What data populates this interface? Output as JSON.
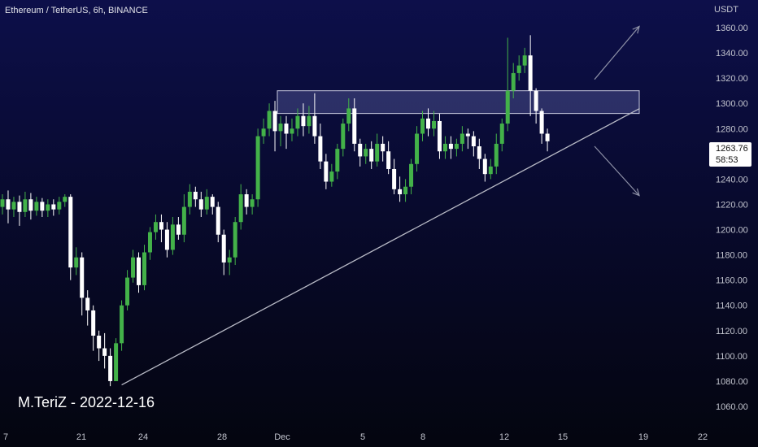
{
  "title": "Ethereum / TetherUS, 6h, BINANCE",
  "watermark": "M.TeriZ - 2022-12-16",
  "currency": "USDT",
  "price_tag": {
    "price": "1263.76",
    "countdown": "58:53"
  },
  "colors": {
    "up": "#43b249",
    "down": "#ffffff",
    "line": "#b8bac6",
    "zone": "#6e73b8",
    "axis_text": "#c3c5cf"
  },
  "chart_data": {
    "type": "candlestick",
    "ylim": [
      1050,
      1370
    ],
    "y_ticks": [
      1060,
      1080,
      1100,
      1120,
      1140,
      1160,
      1180,
      1200,
      1220,
      1240,
      1260,
      1280,
      1300,
      1320,
      1340,
      1360
    ],
    "y_tick_labels": [
      "1060.00",
      "1080.00",
      "1100.00",
      "1120.00",
      "1140.00",
      "1160.00",
      "1180.00",
      "1200.00",
      "1220.00",
      "1240.00",
      "1260.00",
      "1280.00",
      "1300.00",
      "1320.00",
      "1340.00",
      "1360.00"
    ],
    "x_ticks": [
      "7",
      "21",
      "24",
      "28",
      "Dec",
      "5",
      "8",
      "12",
      "15",
      "19",
      "22"
    ],
    "resistance_zone": {
      "low": 1292,
      "high": 1310
    },
    "candles": [
      [
        1218,
        1224,
        1212,
        1228
      ],
      [
        1224,
        1216,
        1205,
        1231
      ],
      [
        1216,
        1222,
        1210,
        1226
      ],
      [
        1222,
        1214,
        1203,
        1227
      ],
      [
        1214,
        1224,
        1210,
        1230
      ],
      [
        1224,
        1215,
        1208,
        1229
      ],
      [
        1215,
        1222,
        1211,
        1226
      ],
      [
        1222,
        1215,
        1210,
        1225
      ],
      [
        1215,
        1220,
        1210,
        1224
      ],
      [
        1220,
        1216,
        1211,
        1224
      ],
      [
        1216,
        1222,
        1212,
        1226
      ],
      [
        1222,
        1226,
        1218,
        1228
      ],
      [
        1226,
        1170,
        1160,
        1228
      ],
      [
        1170,
        1178,
        1164,
        1186
      ],
      [
        1178,
        1146,
        1132,
        1182
      ],
      [
        1146,
        1136,
        1124,
        1152
      ],
      [
        1136,
        1116,
        1104,
        1140
      ],
      [
        1116,
        1106,
        1096,
        1120
      ],
      [
        1106,
        1100,
        1090,
        1118
      ],
      [
        1100,
        1080,
        1076,
        1106
      ],
      [
        1080,
        1110,
        1080,
        1114
      ],
      [
        1110,
        1140,
        1104,
        1144
      ],
      [
        1140,
        1162,
        1136,
        1168
      ],
      [
        1162,
        1178,
        1158,
        1184
      ],
      [
        1178,
        1156,
        1150,
        1182
      ],
      [
        1156,
        1182,
        1152,
        1188
      ],
      [
        1182,
        1198,
        1176,
        1202
      ],
      [
        1198,
        1206,
        1192,
        1212
      ],
      [
        1206,
        1200,
        1190,
        1212
      ],
      [
        1200,
        1184,
        1178,
        1206
      ],
      [
        1184,
        1204,
        1180,
        1210
      ],
      [
        1204,
        1196,
        1192,
        1210
      ],
      [
        1196,
        1218,
        1190,
        1228
      ],
      [
        1218,
        1230,
        1212,
        1236
      ],
      [
        1230,
        1224,
        1218,
        1234
      ],
      [
        1224,
        1216,
        1210,
        1230
      ],
      [
        1216,
        1226,
        1212,
        1232
      ],
      [
        1226,
        1218,
        1212,
        1228
      ],
      [
        1218,
        1196,
        1190,
        1222
      ],
      [
        1196,
        1174,
        1164,
        1200
      ],
      [
        1174,
        1178,
        1164,
        1184
      ],
      [
        1178,
        1206,
        1172,
        1210
      ],
      [
        1206,
        1228,
        1200,
        1236
      ],
      [
        1228,
        1218,
        1212,
        1232
      ],
      [
        1218,
        1224,
        1212,
        1228
      ],
      [
        1224,
        1274,
        1218,
        1280
      ],
      [
        1274,
        1280,
        1268,
        1288
      ],
      [
        1280,
        1294,
        1274,
        1300
      ],
      [
        1294,
        1278,
        1262,
        1302
      ],
      [
        1278,
        1284,
        1266,
        1290
      ],
      [
        1284,
        1276,
        1264,
        1290
      ],
      [
        1276,
        1280,
        1270,
        1288
      ],
      [
        1280,
        1290,
        1274,
        1296
      ],
      [
        1290,
        1282,
        1274,
        1300
      ],
      [
        1282,
        1290,
        1276,
        1298
      ],
      [
        1290,
        1274,
        1268,
        1308
      ],
      [
        1274,
        1254,
        1248,
        1284
      ],
      [
        1254,
        1238,
        1232,
        1260
      ],
      [
        1238,
        1246,
        1234,
        1252
      ],
      [
        1246,
        1264,
        1240,
        1268
      ],
      [
        1264,
        1284,
        1258,
        1288
      ],
      [
        1284,
        1296,
        1278,
        1304
      ],
      [
        1296,
        1268,
        1262,
        1304
      ],
      [
        1268,
        1258,
        1250,
        1272
      ],
      [
        1258,
        1264,
        1252,
        1268
      ],
      [
        1264,
        1254,
        1248,
        1270
      ],
      [
        1254,
        1268,
        1250,
        1276
      ],
      [
        1268,
        1262,
        1254,
        1274
      ],
      [
        1262,
        1248,
        1244,
        1270
      ],
      [
        1248,
        1232,
        1228,
        1256
      ],
      [
        1232,
        1228,
        1222,
        1242
      ],
      [
        1228,
        1234,
        1222,
        1240
      ],
      [
        1234,
        1252,
        1228,
        1256
      ],
      [
        1252,
        1276,
        1246,
        1282
      ],
      [
        1276,
        1288,
        1270,
        1294
      ],
      [
        1288,
        1280,
        1274,
        1296
      ],
      [
        1280,
        1286,
        1274,
        1294
      ],
      [
        1286,
        1262,
        1256,
        1292
      ],
      [
        1262,
        1268,
        1256,
        1274
      ],
      [
        1268,
        1264,
        1256,
        1274
      ],
      [
        1264,
        1268,
        1258,
        1272
      ],
      [
        1268,
        1276,
        1262,
        1282
      ],
      [
        1276,
        1274,
        1264,
        1280
      ],
      [
        1274,
        1266,
        1258,
        1278
      ],
      [
        1266,
        1256,
        1248,
        1272
      ],
      [
        1256,
        1244,
        1238,
        1260
      ],
      [
        1244,
        1250,
        1240,
        1256
      ],
      [
        1250,
        1268,
        1244,
        1276
      ],
      [
        1268,
        1284,
        1262,
        1288
      ],
      [
        1284,
        1310,
        1278,
        1352
      ],
      [
        1310,
        1324,
        1304,
        1332
      ],
      [
        1324,
        1330,
        1318,
        1338
      ],
      [
        1330,
        1338,
        1324,
        1344
      ],
      [
        1338,
        1310,
        1290,
        1354
      ],
      [
        1310,
        1294,
        1284,
        1312
      ],
      [
        1294,
        1276,
        1268,
        1296
      ],
      [
        1276,
        1270,
        1262,
        1280
      ]
    ],
    "support_line": {
      "from": {
        "index": 21,
        "value": 1077
      },
      "to": {
        "index": 121,
        "value": 1296
      }
    },
    "projections": [
      {
        "from": {
          "index": 102,
          "value": 1319
        },
        "to": {
          "index": 112,
          "value": 1361
        }
      },
      {
        "from": {
          "index": 102,
          "value": 1266
        },
        "to": {
          "index": 112,
          "value": 1227
        }
      }
    ]
  }
}
